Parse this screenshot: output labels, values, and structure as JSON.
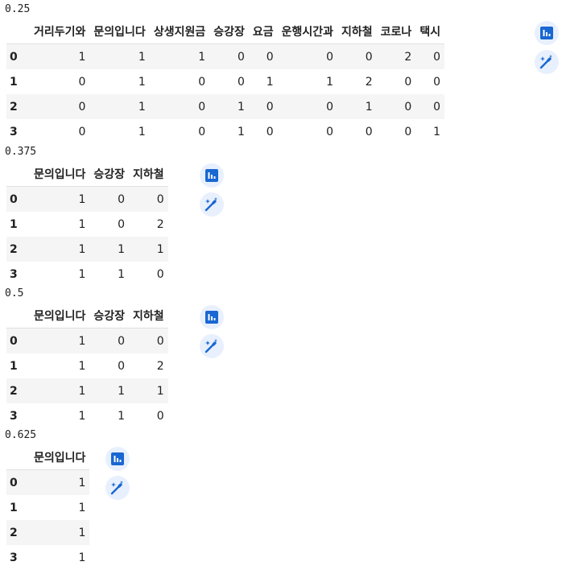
{
  "tables": [
    {
      "caption": "0.25",
      "columns": [
        "거리두기와",
        "문의입니다",
        "상생지원금",
        "승강장",
        "요금",
        "운행시간과",
        "지하철",
        "코로나",
        "택시"
      ],
      "index": [
        "0",
        "1",
        "2",
        "3"
      ],
      "rows": [
        [
          "1",
          "1",
          "1",
          "0",
          "0",
          "0",
          "0",
          "2",
          "0"
        ],
        [
          "0",
          "1",
          "0",
          "0",
          "1",
          "1",
          "2",
          "0",
          "0"
        ],
        [
          "0",
          "1",
          "0",
          "1",
          "0",
          "0",
          "1",
          "0",
          "0"
        ],
        [
          "0",
          "1",
          "0",
          "1",
          "0",
          "0",
          "0",
          "0",
          "1"
        ]
      ]
    },
    {
      "caption": "0.375",
      "columns": [
        "문의입니다",
        "승강장",
        "지하철"
      ],
      "index": [
        "0",
        "1",
        "2",
        "3"
      ],
      "rows": [
        [
          "1",
          "0",
          "0"
        ],
        [
          "1",
          "0",
          "2"
        ],
        [
          "1",
          "1",
          "1"
        ],
        [
          "1",
          "1",
          "0"
        ]
      ]
    },
    {
      "caption": "0.5",
      "columns": [
        "문의입니다",
        "승강장",
        "지하철"
      ],
      "index": [
        "0",
        "1",
        "2",
        "3"
      ],
      "rows": [
        [
          "1",
          "0",
          "0"
        ],
        [
          "1",
          "0",
          "2"
        ],
        [
          "1",
          "1",
          "1"
        ],
        [
          "1",
          "1",
          "0"
        ]
      ]
    },
    {
      "caption": "0.625",
      "columns": [
        "문의입니다"
      ],
      "index": [
        "0",
        "1",
        "2",
        "3"
      ],
      "rows": [
        [
          "1"
        ],
        [
          "1"
        ],
        [
          "1"
        ],
        [
          "1"
        ]
      ]
    }
  ],
  "icons": {
    "chart": "bar-chart-icon",
    "magic": "magic-wand-icon"
  },
  "colors": {
    "accent": "#1967d2",
    "button_bg": "#e8f0fe",
    "stripe": "#f5f5f5"
  }
}
